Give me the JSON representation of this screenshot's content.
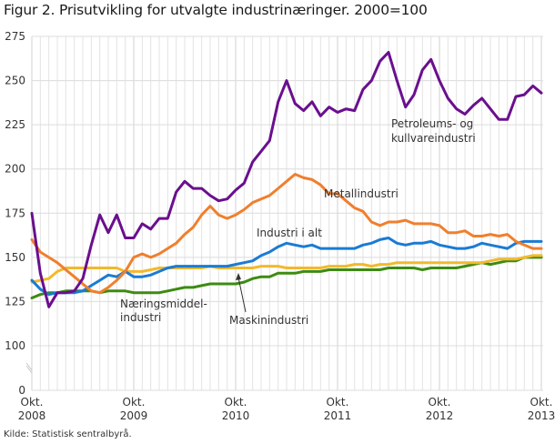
{
  "chart_data": {
    "type": "line",
    "title": "Figur 2. Prisutvikling for utvalgte industrinæringer. 2000=100",
    "source": "Kilde: Statistisk sentralbyrå.",
    "xlabel": "",
    "ylabel": "",
    "ylim": [
      0,
      275
    ],
    "axis_break": [
      0,
      100
    ],
    "yticks": [
      0,
      100,
      125,
      150,
      175,
      200,
      225,
      250,
      275
    ],
    "x_start": "2008-10",
    "x_end": "2013-10",
    "frequency": "monthly",
    "grid": true,
    "xticks": [
      {
        "line1": "Okt.",
        "line2": "2008",
        "index": 0
      },
      {
        "line1": "Okt.",
        "line2": "2009",
        "index": 12
      },
      {
        "line1": "Okt.",
        "line2": "2010",
        "index": 24
      },
      {
        "line1": "Okt.",
        "line2": "2011",
        "index": 36
      },
      {
        "line1": "Okt.",
        "line2": "2012",
        "index": 48
      },
      {
        "line1": "Okt.",
        "line2": "2013",
        "index": 60
      }
    ],
    "series": [
      {
        "name": "Petroleums- og kullvareindustri",
        "color": "#6a0f8e",
        "values": [
          175,
          141,
          122,
          130,
          130,
          131,
          138,
          157,
          174,
          164,
          174,
          161,
          161,
          169,
          166,
          172,
          172,
          187,
          193,
          189,
          189,
          185,
          182,
          183,
          188,
          192,
          204,
          210,
          216,
          238,
          250,
          237,
          233,
          238,
          230,
          235,
          232,
          234,
          233,
          245,
          250,
          261,
          266,
          250,
          235,
          242,
          256,
          262,
          250,
          240,
          234,
          231,
          236,
          240,
          234,
          228,
          228,
          241,
          242,
          247,
          243
        ]
      },
      {
        "name": "Metallindustri",
        "color": "#f07f2d",
        "values": [
          160,
          153,
          150,
          147,
          143,
          139,
          135,
          131,
          130,
          133,
          137,
          142,
          150,
          152,
          150,
          152,
          155,
          158,
          163,
          167,
          174,
          179,
          174,
          172,
          174,
          177,
          181,
          183,
          185,
          189,
          193,
          197,
          195,
          194,
          191,
          186,
          186,
          182,
          178,
          176,
          170,
          168,
          170,
          170,
          171,
          169,
          169,
          169,
          168,
          164,
          164,
          165,
          162,
          162,
          163,
          162,
          163,
          159,
          157,
          155,
          155
        ]
      },
      {
        "name": "Industri i alt",
        "color": "#1a7bd4",
        "values": [
          137,
          132,
          129,
          130,
          130,
          130,
          131,
          134,
          137,
          140,
          139,
          142,
          139,
          139,
          140,
          142,
          144,
          145,
          145,
          145,
          145,
          145,
          145,
          145,
          146,
          147,
          148,
          151,
          153,
          156,
          158,
          157,
          156,
          157,
          155,
          155,
          155,
          155,
          155,
          157,
          158,
          160,
          161,
          158,
          157,
          158,
          158,
          159,
          157,
          156,
          155,
          155,
          156,
          158,
          157,
          156,
          155,
          158,
          159,
          159,
          159
        ]
      },
      {
        "name": "Maskinindustri",
        "color": "#f3b92c",
        "values": [
          136,
          137,
          138,
          142,
          144,
          144,
          144,
          144,
          144,
          144,
          144,
          142,
          142,
          142,
          143,
          144,
          144,
          144,
          144,
          144,
          144,
          145,
          144,
          144,
          144,
          144,
          144,
          145,
          145,
          145,
          144,
          144,
          144,
          144,
          144,
          145,
          145,
          145,
          146,
          146,
          145,
          146,
          146,
          147,
          147,
          147,
          147,
          147,
          147,
          147,
          147,
          147,
          147,
          147,
          148,
          149,
          149,
          149,
          150,
          151,
          151
        ]
      },
      {
        "name": "Næringsmiddelindustri",
        "color": "#3d8b12",
        "values": [
          127,
          129,
          130,
          130,
          131,
          131,
          131,
          131,
          130,
          131,
          131,
          131,
          130,
          130,
          130,
          130,
          131,
          132,
          133,
          133,
          134,
          135,
          135,
          135,
          135,
          136,
          138,
          139,
          139,
          141,
          141,
          141,
          142,
          142,
          142,
          143,
          143,
          143,
          143,
          143,
          143,
          143,
          144,
          144,
          144,
          144,
          143,
          144,
          144,
          144,
          144,
          145,
          146,
          147,
          146,
          147,
          148,
          148,
          150,
          150,
          150
        ]
      }
    ],
    "annotations": [
      {
        "series": "Petroleums- og kullvareindustri",
        "lines": [
          "Petroleums- og",
          "kullvareindustri"
        ]
      },
      {
        "series": "Metallindustri",
        "lines": [
          "Metallindustri"
        ]
      },
      {
        "series": "Industri i alt",
        "lines": [
          "Industri i alt"
        ]
      },
      {
        "series": "Næringsmiddelindustri",
        "lines": [
          "Næringsmiddel-",
          "industri"
        ]
      },
      {
        "series": "Maskinindustri",
        "lines": [
          "Maskinindustri"
        ],
        "arrow": true
      }
    ]
  }
}
